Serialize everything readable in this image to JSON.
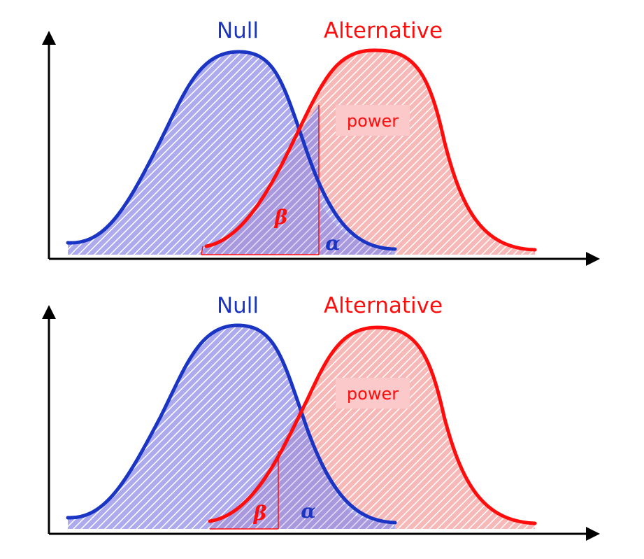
{
  "colors": {
    "null": "#1a35c4",
    "null_fill": "#a9a6ea",
    "alternative": "#ff0d0d",
    "alt_fill": "#f6b9b9",
    "overlap_fill": "#b09ad8",
    "power_box": "#fbc9c9",
    "axis": "#000000"
  },
  "panels": [
    {
      "null_label": "Null",
      "alternative_label": "Alternative",
      "power_label": "power",
      "beta_label": "β",
      "alpha_label": "α"
    },
    {
      "null_label": "Null",
      "alternative_label": "Alternative",
      "power_label": "power",
      "beta_label": "β",
      "alpha_label": "α"
    }
  ]
}
